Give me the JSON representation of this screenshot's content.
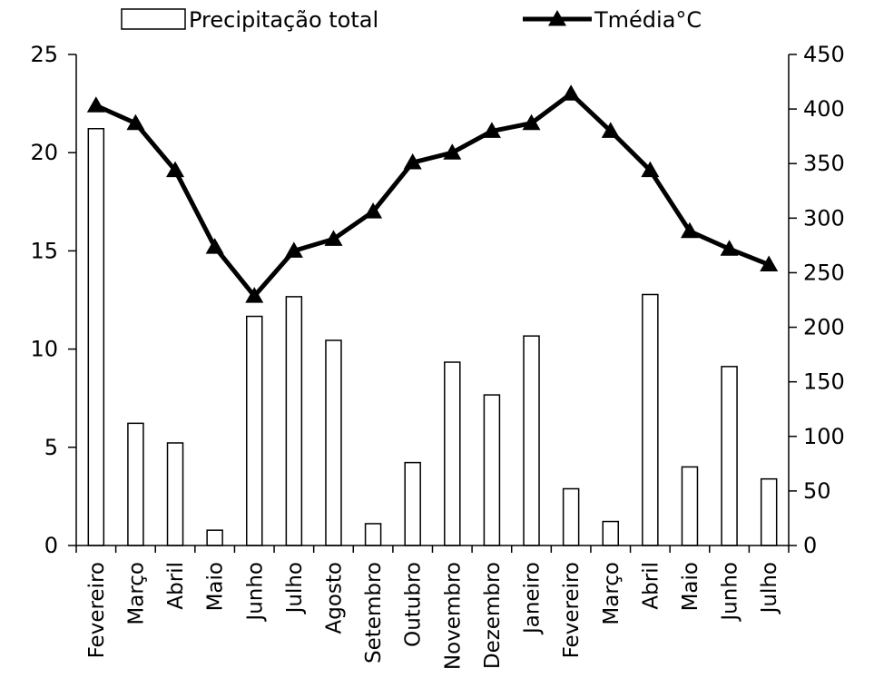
{
  "chart_data": {
    "type": "bar+line",
    "categories": [
      "Fevereiro",
      "Março",
      "Abril",
      "Maio",
      "Junho",
      "Julho",
      "Agosto",
      "Setembro",
      "Outubro",
      "Novembro",
      "Dezembro",
      "Janeiro",
      "Fevereiro",
      "Março",
      "Abril",
      "Maio",
      "Junho",
      "Julho"
    ],
    "series": [
      {
        "name": "Precipitação total",
        "type": "bar",
        "axis": "right",
        "values": [
          382,
          112,
          94,
          14,
          210,
          228,
          188,
          20,
          76,
          168,
          138,
          192,
          52,
          22,
          230,
          72,
          164,
          61
        ]
      },
      {
        "name": "Tmédia°C",
        "type": "line",
        "axis": "left",
        "marker": "triangle",
        "values": [
          22.4,
          21.5,
          19.1,
          15.2,
          12.7,
          15.0,
          15.6,
          17.0,
          19.5,
          20.0,
          21.1,
          21.5,
          23.0,
          21.1,
          19.1,
          16.0,
          15.1,
          14.3
        ]
      }
    ],
    "left_axis": {
      "ylim": [
        0,
        25
      ],
      "ticks": [
        "0",
        "5",
        "10",
        "15",
        "20",
        "25"
      ]
    },
    "right_axis": {
      "ylim": [
        0,
        450
      ],
      "ticks": [
        "0",
        "50",
        "100",
        "150",
        "200",
        "250",
        "300",
        "350",
        "400",
        "450"
      ]
    },
    "legend_position": "top",
    "grid": false
  }
}
